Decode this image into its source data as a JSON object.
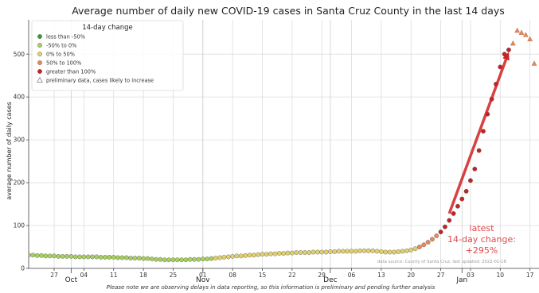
{
  "chart_data": {
    "type": "scatter",
    "title": "Average number of daily new COVID-19 cases in Santa Cruz County in the last 14 days",
    "ylabel": "average number of daily cases",
    "xlim": [
      "2021-09-21",
      "2022-01-18"
    ],
    "ylim": [
      0,
      580
    ],
    "yticks": [
      0,
      100,
      200,
      300,
      400,
      500
    ],
    "xticks": [
      {
        "date": "2021-09-27",
        "label": "27"
      },
      {
        "date": "2021-10-04",
        "label": "04"
      },
      {
        "date": "2021-10-11",
        "label": "11"
      },
      {
        "date": "2021-10-18",
        "label": "18"
      },
      {
        "date": "2021-10-25",
        "label": "25"
      },
      {
        "date": "2021-11-01",
        "label": "01"
      },
      {
        "date": "2021-11-08",
        "label": "08"
      },
      {
        "date": "2021-11-15",
        "label": "15"
      },
      {
        "date": "2021-11-22",
        "label": "22"
      },
      {
        "date": "2021-11-29",
        "label": "29"
      },
      {
        "date": "2021-12-06",
        "label": "06"
      },
      {
        "date": "2021-12-13",
        "label": "13"
      },
      {
        "date": "2021-12-20",
        "label": "20"
      },
      {
        "date": "2021-12-27",
        "label": "27"
      },
      {
        "date": "2022-01-03",
        "label": "03"
      },
      {
        "date": "2022-01-10",
        "label": "10"
      },
      {
        "date": "2022-01-17",
        "label": "17"
      }
    ],
    "months": [
      {
        "date": "2021-10-01",
        "label": "Oct"
      },
      {
        "date": "2021-11-01",
        "label": "Nov"
      },
      {
        "date": "2021-12-01",
        "label": "Dec"
      },
      {
        "date": "2022-01-01",
        "label": "Jan"
      }
    ],
    "grid": true,
    "legend": {
      "title": "14-day change",
      "placement": "top-left",
      "entries": [
        {
          "label": "less than -50%",
          "color": "#3a9a3a",
          "marker": "circle"
        },
        {
          "label": "-50% to 0%",
          "color": "#a8cf60",
          "marker": "circle"
        },
        {
          "label": "0% to 50%",
          "color": "#e0d070",
          "marker": "circle"
        },
        {
          "label": "50% to 100%",
          "color": "#e8895a",
          "marker": "circle"
        },
        {
          "label": "greater than 100%",
          "color": "#c02424",
          "marker": "circle"
        },
        {
          "label": "preliminary data, cases likely to increase",
          "color": "#ffffff",
          "marker": "triangle-open"
        }
      ]
    },
    "series": [
      {
        "category": "-50% to 0%",
        "marker": "circle",
        "points": [
          [
            "2021-09-21",
            31
          ],
          [
            "2021-09-22",
            31
          ],
          [
            "2021-09-23",
            30
          ],
          [
            "2021-09-24",
            30
          ],
          [
            "2021-09-25",
            29
          ],
          [
            "2021-09-26",
            29
          ],
          [
            "2021-09-27",
            29
          ],
          [
            "2021-09-28",
            28
          ],
          [
            "2021-09-29",
            28
          ],
          [
            "2021-09-30",
            28
          ],
          [
            "2021-10-01",
            28
          ],
          [
            "2021-10-02",
            27
          ],
          [
            "2021-10-03",
            27
          ],
          [
            "2021-10-04",
            27
          ],
          [
            "2021-10-05",
            27
          ],
          [
            "2021-10-06",
            27
          ],
          [
            "2021-10-07",
            27
          ],
          [
            "2021-10-08",
            26
          ],
          [
            "2021-10-09",
            26
          ],
          [
            "2021-10-10",
            26
          ],
          [
            "2021-10-11",
            26
          ],
          [
            "2021-10-12",
            25
          ],
          [
            "2021-10-13",
            25
          ],
          [
            "2021-10-14",
            25
          ],
          [
            "2021-10-15",
            24
          ],
          [
            "2021-10-16",
            24
          ],
          [
            "2021-10-17",
            24
          ],
          [
            "2021-10-18",
            23
          ],
          [
            "2021-10-19",
            23
          ],
          [
            "2021-10-20",
            22
          ],
          [
            "2021-10-21",
            21
          ],
          [
            "2021-10-22",
            21
          ],
          [
            "2021-10-23",
            20
          ],
          [
            "2021-10-24",
            20
          ],
          [
            "2021-10-25",
            20
          ],
          [
            "2021-10-26",
            20
          ],
          [
            "2021-10-27",
            20
          ],
          [
            "2021-10-28",
            20
          ],
          [
            "2021-10-29",
            21
          ],
          [
            "2021-10-30",
            21
          ],
          [
            "2021-10-31",
            21
          ],
          [
            "2021-11-01",
            22
          ],
          [
            "2021-11-02",
            22
          ],
          [
            "2021-11-03",
            23
          ]
        ]
      },
      {
        "category": "0% to 50%",
        "marker": "circle",
        "points": [
          [
            "2021-11-04",
            24
          ],
          [
            "2021-11-05",
            25
          ],
          [
            "2021-11-06",
            26
          ],
          [
            "2021-11-07",
            27
          ],
          [
            "2021-11-08",
            28
          ],
          [
            "2021-11-09",
            29
          ],
          [
            "2021-11-10",
            29
          ],
          [
            "2021-11-11",
            30
          ],
          [
            "2021-11-12",
            31
          ],
          [
            "2021-11-13",
            31
          ],
          [
            "2021-11-14",
            32
          ],
          [
            "2021-11-15",
            33
          ],
          [
            "2021-11-16",
            33
          ],
          [
            "2021-11-17",
            34
          ],
          [
            "2021-11-18",
            34
          ],
          [
            "2021-11-19",
            35
          ],
          [
            "2021-11-20",
            35
          ],
          [
            "2021-11-21",
            36
          ],
          [
            "2021-11-22",
            36
          ],
          [
            "2021-11-23",
            37
          ],
          [
            "2021-11-24",
            37
          ],
          [
            "2021-11-25",
            37
          ],
          [
            "2021-11-26",
            37
          ],
          [
            "2021-11-27",
            38
          ],
          [
            "2021-11-28",
            38
          ],
          [
            "2021-11-29",
            38
          ],
          [
            "2021-11-30",
            38
          ],
          [
            "2021-12-01",
            39
          ],
          [
            "2021-12-02",
            39
          ],
          [
            "2021-12-03",
            40
          ],
          [
            "2021-12-04",
            40
          ],
          [
            "2021-12-05",
            40
          ],
          [
            "2021-12-06",
            40
          ],
          [
            "2021-12-07",
            40
          ],
          [
            "2021-12-08",
            41
          ],
          [
            "2021-12-09",
            41
          ],
          [
            "2021-12-10",
            41
          ],
          [
            "2021-12-11",
            41
          ],
          [
            "2021-12-12",
            40
          ],
          [
            "2021-12-13",
            39
          ],
          [
            "2021-12-14",
            38
          ],
          [
            "2021-12-15",
            38
          ],
          [
            "2021-12-16",
            38
          ],
          [
            "2021-12-17",
            39
          ],
          [
            "2021-12-18",
            40
          ],
          [
            "2021-12-19",
            41
          ],
          [
            "2021-12-20",
            43
          ],
          [
            "2021-12-21",
            46
          ]
        ]
      },
      {
        "category": "50% to 100%",
        "marker": "circle",
        "points": [
          [
            "2021-12-22",
            50
          ],
          [
            "2021-12-23",
            55
          ],
          [
            "2021-12-24",
            61
          ],
          [
            "2021-12-25",
            68
          ],
          [
            "2021-12-26",
            76
          ]
        ]
      },
      {
        "category": "greater than 100%",
        "marker": "circle",
        "points": [
          [
            "2021-12-27",
            85
          ],
          [
            "2021-12-28",
            97
          ],
          [
            "2021-12-29",
            112
          ],
          [
            "2021-12-30",
            128
          ],
          [
            "2021-12-31",
            145
          ],
          [
            "2022-01-01",
            162
          ],
          [
            "2022-01-02",
            180
          ],
          [
            "2022-01-03",
            205
          ],
          [
            "2022-01-04",
            232
          ],
          [
            "2022-01-05",
            275
          ],
          [
            "2022-01-06",
            320
          ],
          [
            "2022-01-07",
            360
          ],
          [
            "2022-01-08",
            395
          ],
          [
            "2022-01-09",
            430
          ],
          [
            "2022-01-10",
            470
          ],
          [
            "2022-01-11",
            500
          ],
          [
            "2022-01-12",
            510
          ]
        ]
      },
      {
        "category": "preliminary data, cases likely to increase",
        "marker": "triangle",
        "color": "#e8895a",
        "points": [
          [
            "2022-01-13",
            525
          ],
          [
            "2022-01-14",
            555
          ],
          [
            "2022-01-15",
            550
          ],
          [
            "2022-01-16",
            545
          ],
          [
            "2022-01-17",
            535
          ],
          [
            "2022-01-18",
            478
          ]
        ]
      }
    ],
    "trend_arrow": {
      "from": [
        "2021-12-29",
        128
      ],
      "to": [
        "2022-01-12",
        505
      ],
      "color": "#d02020"
    },
    "annotation": {
      "line1": "latest",
      "line2": "14-day change:",
      "line3": "+295%"
    },
    "source_note": "data source: County of Santa Cruz, last updated: 2022-01-18",
    "footnote": "Please note we are observing delays in data reporting, so this information is preliminary and pending further analysis"
  }
}
